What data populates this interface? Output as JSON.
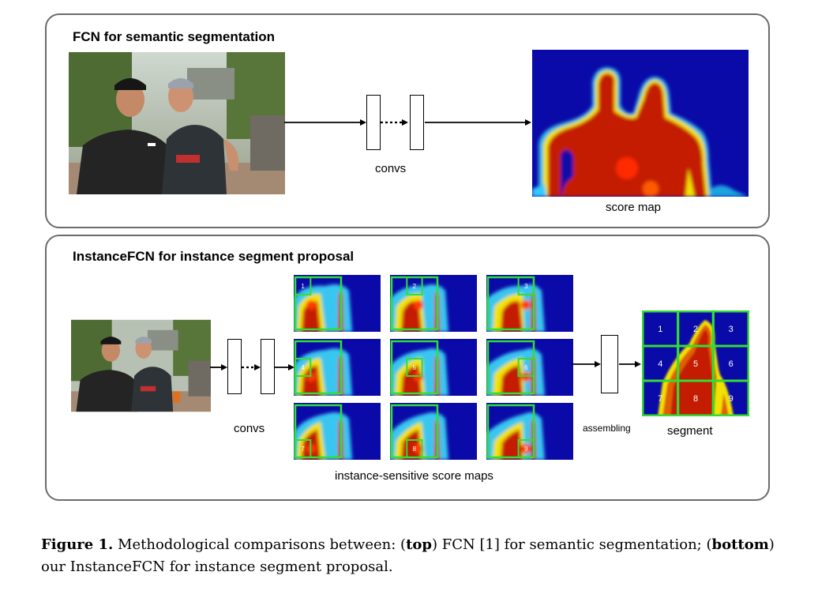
{
  "top_panel": {
    "title": "FCN for semantic segmentation",
    "convs_label": "convs",
    "output_label": "score map"
  },
  "bottom_panel": {
    "title": "InstanceFCN for instance segment proposal",
    "convs_label": "convs",
    "maps_label": "instance-sensitive score maps",
    "assembling_label": "assembling",
    "output_label": "segment",
    "cell_numbers": [
      "1",
      "2",
      "3",
      "4",
      "5",
      "6",
      "7",
      "8",
      "9"
    ]
  },
  "caption": {
    "figure_label": "Figure 1.",
    "text_part1": "Methodological comparisons between: (",
    "top_word": "top",
    "text_part2": ") FCN [1] for semantic segmentation; (",
    "bottom_word": "bottom",
    "text_part3": ") our InstanceFCN for instance segment proposal."
  },
  "colors": {
    "panel_border": "#6b6b6b",
    "heat_background": "#0a0aa8",
    "heat_hot": "#c41a00",
    "grid_green": "#33dd33"
  }
}
